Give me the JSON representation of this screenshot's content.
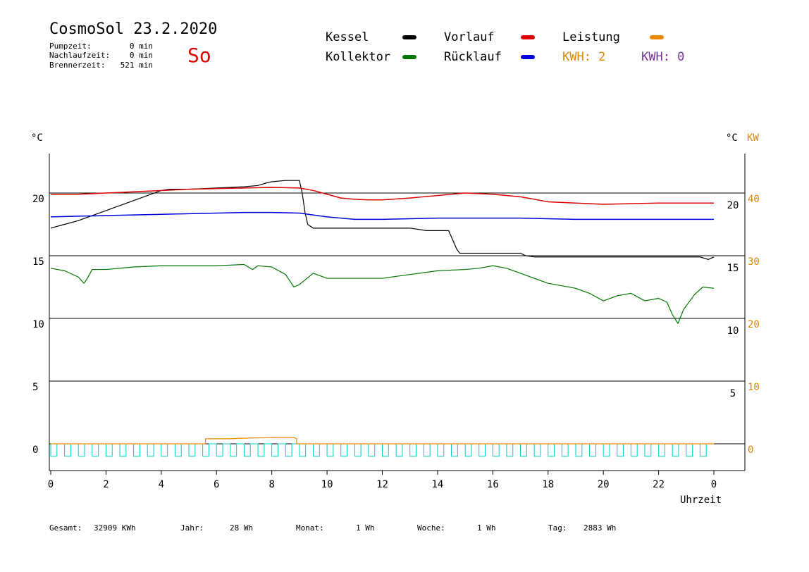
{
  "header": {
    "title": "CosmoSol 23.2.2020",
    "day": "So",
    "stats": [
      {
        "label": "Pumpzeit:",
        "value": "0 min"
      },
      {
        "label": "Nachlaufzeit:",
        "value": "0 min"
      },
      {
        "label": "Brennerzeit:",
        "value": "521 min"
      }
    ]
  },
  "legend": {
    "items": [
      {
        "label": "Kessel",
        "color": "#000000"
      },
      {
        "label": "Vorlauf",
        "color": "#dd0000"
      },
      {
        "label": "Leistung",
        "color": "#ee8800"
      },
      {
        "label": "Kollektor",
        "color": "#007700"
      },
      {
        "label": "Rücklauf",
        "color": "#0000dd"
      }
    ],
    "kwh1": "KWH: 2",
    "kwh1_color": "#dd8800",
    "kwh2": "KWH: 0",
    "kwh2_color": "#773399"
  },
  "axes": {
    "left_unit": "°C",
    "right_unit": "°C",
    "right_kw": "KW",
    "xlabel": "Uhrzeit"
  },
  "footer": [
    {
      "label": "Gesamt:",
      "value": "32909 KWh"
    },
    {
      "label": "Jahr:",
      "value": "28 Wh"
    },
    {
      "label": "Monat:",
      "value": "1 Wh"
    },
    {
      "label": "Woche:",
      "value": "1 Wh"
    },
    {
      "label": "Tag:",
      "value": "2883 Wh"
    }
  ],
  "chart_data": {
    "type": "line",
    "xlabel": "Uhrzeit",
    "ylabel": "°C",
    "xlim": [
      0,
      24
    ],
    "ylim": [
      -2,
      24
    ],
    "x_ticks": [
      "0",
      "2",
      "4",
      "6",
      "8",
      "10",
      "12",
      "14",
      "16",
      "18",
      "20",
      "22",
      "0"
    ],
    "left_ticks": [
      0,
      5,
      10,
      15,
      20
    ],
    "right_temp_ticks": [
      5,
      10,
      15,
      20
    ],
    "right_kw_ticks": [
      0,
      10,
      20,
      30,
      40
    ],
    "grid_y": [
      0,
      5,
      10,
      15,
      20
    ],
    "series": [
      {
        "name": "Kessel",
        "color": "#000000",
        "x": [
          0,
          0.5,
          1,
          1.5,
          2,
          2.5,
          3,
          3.5,
          4,
          4.3,
          4.5,
          5,
          5.5,
          6,
          6.5,
          7,
          7.5,
          7.8,
          8,
          8.5,
          8.9,
          9.0,
          9.1,
          9.2,
          9.3,
          9.5,
          10,
          11,
          12,
          13,
          13.6,
          14,
          14.4,
          14.6,
          14.7,
          14.8,
          15,
          15.5,
          16,
          16.5,
          17,
          17.2,
          17.5,
          18,
          19,
          20,
          21,
          22,
          23,
          23.5,
          23.8,
          24
        ],
        "values": [
          17.2,
          17.5,
          17.8,
          18.2,
          18.6,
          19.0,
          19.4,
          19.8,
          20.2,
          20.3,
          20.3,
          20.3,
          20.35,
          20.4,
          20.45,
          20.5,
          20.6,
          20.8,
          20.9,
          21.0,
          21.0,
          21.0,
          20.0,
          18.5,
          17.5,
          17.2,
          17.2,
          17.2,
          17.2,
          17.2,
          17.0,
          17.0,
          17.0,
          16.0,
          15.5,
          15.2,
          15.2,
          15.2,
          15.2,
          15.2,
          15.2,
          15.0,
          14.9,
          14.9,
          14.9,
          14.9,
          14.9,
          14.9,
          14.9,
          14.9,
          14.7,
          14.9
        ]
      },
      {
        "name": "Vorlauf",
        "color": "#dd0000",
        "x": [
          0,
          1,
          2,
          3,
          4,
          5,
          6,
          7,
          8,
          9,
          9.5,
          10,
          10.5,
          11,
          11.5,
          12,
          13,
          14,
          15,
          16,
          17,
          17.5,
          18,
          19,
          20,
          21,
          22,
          23,
          24
        ],
        "values": [
          19.9,
          19.9,
          20.0,
          20.1,
          20.2,
          20.3,
          20.35,
          20.4,
          20.45,
          20.4,
          20.2,
          19.9,
          19.6,
          19.5,
          19.45,
          19.45,
          19.6,
          19.8,
          20.0,
          19.9,
          19.7,
          19.5,
          19.3,
          19.2,
          19.1,
          19.15,
          19.2,
          19.2,
          19.2
        ]
      },
      {
        "name": "Rücklauf",
        "color": "#0000dd",
        "x": [
          0,
          1,
          2,
          3,
          4,
          5,
          6,
          7,
          8,
          9,
          10,
          11,
          12,
          13,
          14,
          15,
          16,
          17,
          18,
          19,
          20,
          21,
          22,
          23,
          24
        ],
        "values": [
          18.1,
          18.15,
          18.2,
          18.25,
          18.3,
          18.35,
          18.4,
          18.45,
          18.45,
          18.4,
          18.1,
          17.9,
          17.9,
          17.95,
          18.0,
          18.0,
          18.0,
          18.0,
          17.95,
          17.9,
          17.9,
          17.9,
          17.9,
          17.9,
          17.9
        ]
      },
      {
        "name": "Kollektor",
        "color": "#007700",
        "x": [
          0,
          0.5,
          1,
          1.2,
          1.3,
          1.5,
          2,
          3,
          4,
          5,
          6,
          7,
          7.3,
          7.5,
          8,
          8.5,
          8.8,
          9,
          9.5,
          10,
          11,
          12,
          13,
          14,
          15,
          15.5,
          16,
          16.5,
          17,
          17.5,
          18,
          18.5,
          19,
          19.5,
          20,
          20.5,
          21,
          21.5,
          22,
          22.3,
          22.5,
          22.7,
          22.9,
          23,
          23.3,
          23.6,
          24
        ],
        "values": [
          14.0,
          13.8,
          13.3,
          12.8,
          13.1,
          13.9,
          13.9,
          14.1,
          14.2,
          14.2,
          14.2,
          14.3,
          13.9,
          14.2,
          14.1,
          13.5,
          12.5,
          12.7,
          13.6,
          13.2,
          13.2,
          13.2,
          13.5,
          13.8,
          13.9,
          14.0,
          14.2,
          14.0,
          13.6,
          13.2,
          12.8,
          12.6,
          12.4,
          12.0,
          11.4,
          11.8,
          12.0,
          11.4,
          11.6,
          11.3,
          10.3,
          9.6,
          10.7,
          11.0,
          11.9,
          12.5,
          12.4
        ]
      },
      {
        "name": "Leistung",
        "color": "#ee8800",
        "x": [
          0,
          5.6,
          5.6,
          6.5,
          7,
          8.2,
          8.8,
          8.9,
          8.9,
          24
        ],
        "values": [
          0,
          0,
          0.4,
          0.4,
          0.45,
          0.5,
          0.5,
          0.4,
          0,
          0
        ]
      }
    ],
    "pump_pulses": {
      "color": "#00cccc",
      "period_hours": 0.5,
      "low": -1.0,
      "high": 0.0
    }
  }
}
